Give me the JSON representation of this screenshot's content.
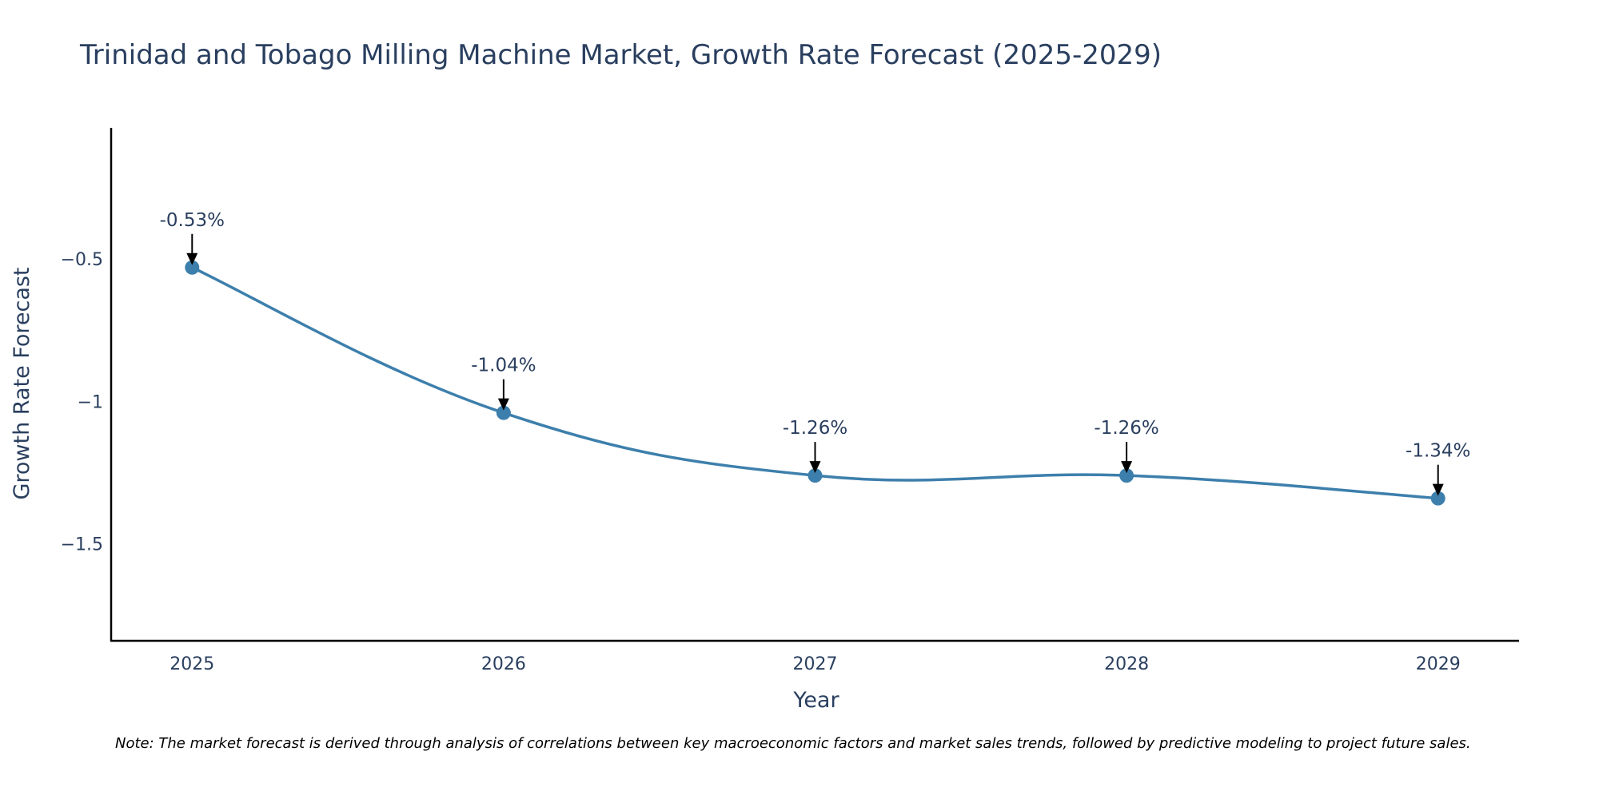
{
  "chart_data": {
    "type": "line",
    "title": "Trinidad and Tobago Milling Machine Market, Growth Rate Forecast (2025-2029)",
    "xlabel": "Year",
    "ylabel": "Growth Rate Forecast",
    "x": [
      2025,
      2026,
      2027,
      2028,
      2029
    ],
    "x_tick_labels": [
      "2025",
      "2026",
      "2027",
      "2028",
      "2029"
    ],
    "values": [
      -0.53,
      -1.04,
      -1.26,
      -1.26,
      -1.34
    ],
    "data_labels": [
      "-0.53%",
      "-1.04%",
      "-1.26%",
      "-1.26%",
      "-1.34%"
    ],
    "y_ticks": [
      -0.5,
      -1,
      -1.5
    ],
    "y_tick_labels": [
      "−0.5",
      "−1",
      "−1.5"
    ],
    "ylim": [
      -1.84,
      -0.04
    ],
    "xlim": [
      2024.74,
      2029.26
    ],
    "grid": false,
    "legend": "none",
    "line_color": "#3d7fac",
    "marker_color": "#3d7fac",
    "arrow_color": "#000000"
  },
  "note": "Note: The market forecast is derived through analysis of correlations between key macroeconomic factors and market sales trends, followed by predictive modeling to project future sales."
}
